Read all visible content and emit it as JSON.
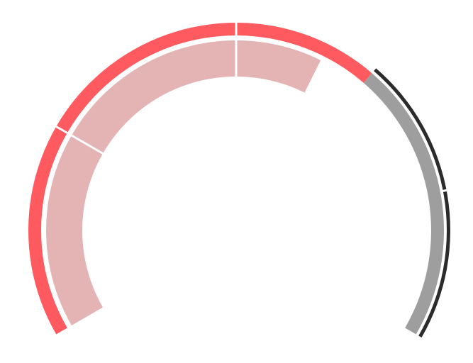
{
  "chart_data": {
    "type": "gauge",
    "title": "",
    "scale": {
      "min": 0,
      "max": 100
    },
    "value": 67,
    "inner_track": {
      "value": 61,
      "segment_boundaries": [
        25,
        50
      ],
      "color": "#e4b4b5"
    },
    "outer_band": {
      "filled_value": 67,
      "segment_boundaries": [
        25,
        50
      ],
      "filled_color": "#ff5a5f",
      "remaining_color": "#9e9e9e"
    },
    "outer_marker_band": {
      "from": 67,
      "to": 100,
      "segment_boundaries": [
        83
      ],
      "color": "#2b2b2b"
    }
  }
}
